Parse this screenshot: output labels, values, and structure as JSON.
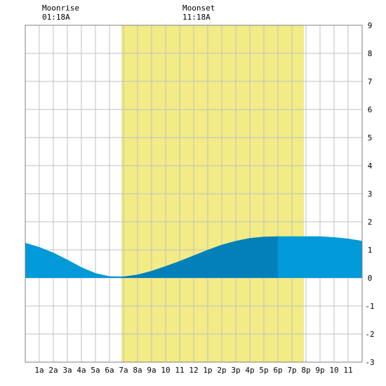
{
  "moon": {
    "moonrise_label": "Moonrise",
    "moonrise_time": "01:18A",
    "moonset_label": "Moonset",
    "moonset_time": "11:18A"
  },
  "chart_data": {
    "type": "area",
    "title": "",
    "xlabel": "",
    "ylabel": "",
    "x_ticks": [
      "1a",
      "2a",
      "3a",
      "4a",
      "5a",
      "6a",
      "7a",
      "8a",
      "9a",
      "10",
      "11",
      "12",
      "1p",
      "2p",
      "3p",
      "4p",
      "5p",
      "6p",
      "7p",
      "8p",
      "9p",
      "10",
      "11"
    ],
    "xlim": [
      0,
      24
    ],
    "ylim": [
      -3,
      9
    ],
    "y_ticks": [
      -3,
      -2,
      -1,
      0,
      1,
      2,
      3,
      4,
      5,
      6,
      7,
      8,
      9
    ],
    "grid": true,
    "daylight_hours": [
      6.85,
      19.85
    ],
    "series": [
      {
        "x": [
          0,
          1,
          2,
          3,
          4,
          5,
          6,
          7,
          8,
          9,
          10,
          11,
          12,
          13,
          14,
          15,
          16,
          17,
          18,
          19,
          20,
          21,
          22,
          23,
          24
        ],
        "values": [
          1.25,
          1.1,
          0.9,
          0.65,
          0.38,
          0.17,
          0.06,
          0.05,
          0.12,
          0.25,
          0.42,
          0.6,
          0.8,
          1.0,
          1.18,
          1.32,
          1.42,
          1.47,
          1.48,
          1.48,
          1.48,
          1.48,
          1.45,
          1.4,
          1.32
        ]
      }
    ],
    "colors": {
      "daylight": "#f2eb86",
      "tide_night": "#0299d9",
      "tide_day": "#0180b9",
      "grid": "#c0c0c0",
      "frame": "#808080"
    }
  }
}
